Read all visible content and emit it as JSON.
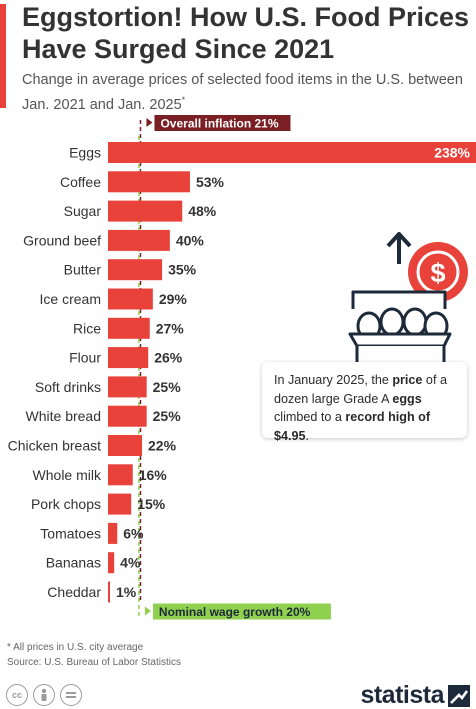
{
  "header": {
    "title": "Eggstortion! How U.S. Food Prices Have Surged Since 2021",
    "subtitle": "Change in average prices of selected food items in the U.S. between Jan. 2021 and Jan. 2025",
    "subtitle_mark": "*"
  },
  "chart_data": {
    "type": "bar",
    "orientation": "horizontal",
    "categories": [
      "Eggs",
      "Coffee",
      "Sugar",
      "Ground beef",
      "Butter",
      "Ice cream",
      "Rice",
      "Flour",
      "Soft drinks",
      "White bread",
      "Chicken breast",
      "Whole milk",
      "Pork chops",
      "Tomatoes",
      "Bananas",
      "Cheddar"
    ],
    "values": [
      238,
      53,
      48,
      40,
      35,
      29,
      27,
      26,
      25,
      25,
      22,
      16,
      15,
      6,
      4,
      1
    ],
    "value_labels": [
      "238%",
      "53%",
      "48%",
      "40%",
      "35%",
      "29%",
      "27%",
      "26%",
      "25%",
      "25%",
      "22%",
      "16%",
      "15%",
      "6%",
      "4%",
      "1%"
    ],
    "reference_lines": [
      {
        "label": "Overall inflation 21%",
        "value": 21,
        "color": "#7a1f24"
      },
      {
        "label": "Nominal wage growth 20%",
        "value": 20,
        "color": "#8fd14f"
      }
    ],
    "bar_color": "#e8423a"
  },
  "callout": {
    "t1": "In January 2025, the ",
    "b1": "price",
    "t2": " of a dozen large Grade A ",
    "b2": "eggs",
    "t3": " climbed to a ",
    "b3": "record high of $4.95",
    "t4": "."
  },
  "footer": {
    "note": "* All prices in U.S. city average",
    "source": "Source: U.S. Bureau of Labor Statistics",
    "license_icons": [
      "cc-icon",
      "attribution-icon",
      "no-derivatives-icon"
    ],
    "brand": "statista"
  },
  "colors": {
    "accent": "#e8423a",
    "dark": "#333333"
  }
}
